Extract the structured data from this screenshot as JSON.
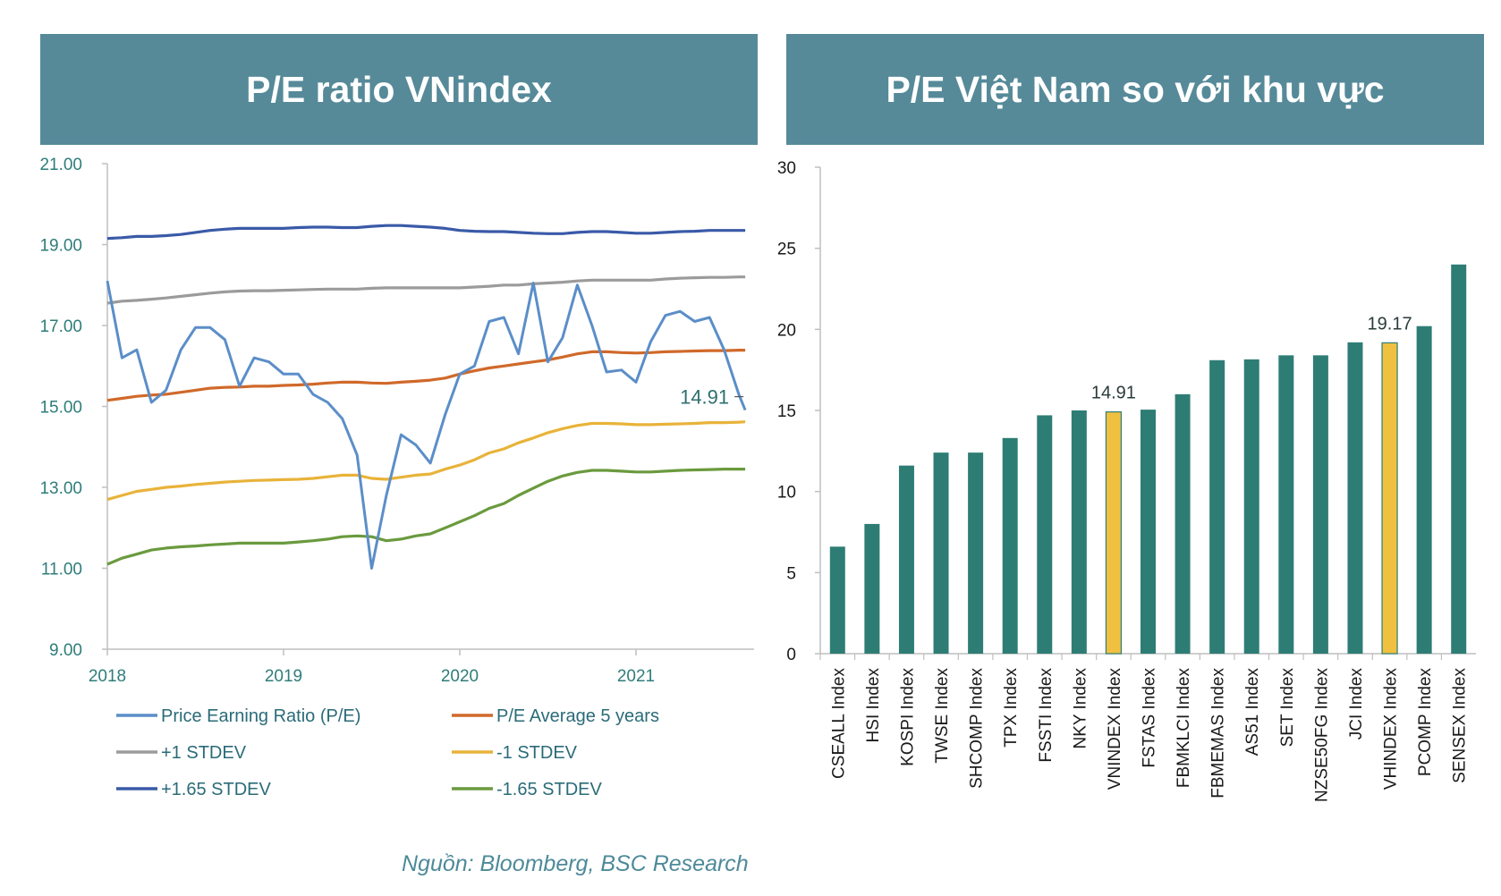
{
  "panels": {
    "left_title": "P/E ratio VNindex",
    "right_title": "P/E Việt Nam so với khu vực"
  },
  "source": "Nguồn: Bloomberg, BSC Research",
  "colors": {
    "banner": "#568a99",
    "pe": "#5b8ec9",
    "avg": "#d0692a",
    "plus1": "#9b9b9b",
    "minus1": "#e8b33a",
    "plus165": "#3a5aa8",
    "minus165": "#6a9a3e",
    "bar": "#2e7d75",
    "bar_highlight": "#f0c040"
  },
  "chart_data": [
    {
      "type": "line",
      "title": "P/E ratio VNindex",
      "x_ticks": [
        "2018",
        "2019",
        "2020",
        "2021"
      ],
      "x_tick_values": [
        2018.0,
        2019.0,
        2020.0,
        2021.0
      ],
      "xlim": [
        2018.0,
        2021.67
      ],
      "ylim": [
        9.0,
        21.0
      ],
      "y_ticks": [
        "9.00",
        "11.00",
        "13.00",
        "15.00",
        "17.00",
        "19.00",
        "21.00"
      ],
      "y_tick_values": [
        9,
        11,
        13,
        15,
        17,
        19,
        21
      ],
      "annotation": {
        "text": "14.91",
        "series": "Price Earning Ratio (P/E)"
      },
      "x": [
        2018.0,
        2018.083,
        2018.167,
        2018.25,
        2018.333,
        2018.417,
        2018.5,
        2018.583,
        2018.667,
        2018.75,
        2018.833,
        2018.917,
        2019.0,
        2019.083,
        2019.167,
        2019.25,
        2019.333,
        2019.417,
        2019.5,
        2019.583,
        2019.667,
        2019.75,
        2019.833,
        2019.917,
        2020.0,
        2020.083,
        2020.167,
        2020.25,
        2020.333,
        2020.417,
        2020.5,
        2020.583,
        2020.667,
        2020.75,
        2020.833,
        2020.917,
        2021.0,
        2021.083,
        2021.167,
        2021.25,
        2021.333,
        2021.417,
        2021.5,
        2021.583,
        2021.62
      ],
      "series": [
        {
          "name": "Price Earning Ratio (P/E)",
          "color_key": "pe",
          "values": [
            18.1,
            16.2,
            16.4,
            15.1,
            15.4,
            16.4,
            16.95,
            16.95,
            16.65,
            15.5,
            16.2,
            16.1,
            15.8,
            15.8,
            15.3,
            15.1,
            14.7,
            13.8,
            11.0,
            12.8,
            14.3,
            14.05,
            13.6,
            14.8,
            15.8,
            16.0,
            17.1,
            17.2,
            16.3,
            18.05,
            16.1,
            16.7,
            18.0,
            17.0,
            15.85,
            15.9,
            15.6,
            16.6,
            17.25,
            17.35,
            17.1,
            17.2,
            16.4,
            15.3,
            14.91
          ]
        },
        {
          "name": "P/E Average 5 years",
          "color_key": "avg",
          "values": [
            15.15,
            15.2,
            15.25,
            15.28,
            15.3,
            15.35,
            15.4,
            15.45,
            15.47,
            15.48,
            15.5,
            15.5,
            15.52,
            15.53,
            15.55,
            15.58,
            15.6,
            15.6,
            15.58,
            15.57,
            15.6,
            15.62,
            15.65,
            15.7,
            15.8,
            15.88,
            15.95,
            16.0,
            16.05,
            16.1,
            16.15,
            16.22,
            16.3,
            16.35,
            16.35,
            16.33,
            16.32,
            16.33,
            16.35,
            16.36,
            16.37,
            16.38,
            16.38,
            16.39,
            16.39
          ]
        },
        {
          "name": "+1 STDEV",
          "color_key": "plus1",
          "values": [
            17.55,
            17.6,
            17.62,
            17.65,
            17.68,
            17.72,
            17.76,
            17.8,
            17.83,
            17.85,
            17.86,
            17.86,
            17.87,
            17.88,
            17.89,
            17.9,
            17.9,
            17.9,
            17.92,
            17.93,
            17.93,
            17.93,
            17.93,
            17.93,
            17.93,
            17.95,
            17.97,
            18.0,
            18.0,
            18.03,
            18.05,
            18.07,
            18.1,
            18.12,
            18.12,
            18.12,
            18.12,
            18.12,
            18.15,
            18.17,
            18.18,
            18.19,
            18.19,
            18.2,
            18.2
          ]
        },
        {
          "name": "-1 STDEV",
          "color_key": "minus1",
          "values": [
            12.7,
            12.8,
            12.9,
            12.95,
            13.0,
            13.03,
            13.07,
            13.1,
            13.13,
            13.15,
            13.17,
            13.18,
            13.19,
            13.2,
            13.22,
            13.26,
            13.3,
            13.3,
            13.22,
            13.2,
            13.25,
            13.3,
            13.33,
            13.45,
            13.55,
            13.68,
            13.85,
            13.95,
            14.1,
            14.22,
            14.35,
            14.45,
            14.53,
            14.58,
            14.58,
            14.57,
            14.55,
            14.55,
            14.56,
            14.57,
            14.58,
            14.6,
            14.6,
            14.61,
            14.62
          ]
        },
        {
          "name": "+1.65 STDEV",
          "color_key": "plus165",
          "values": [
            19.15,
            19.17,
            19.2,
            19.2,
            19.22,
            19.25,
            19.3,
            19.35,
            19.38,
            19.4,
            19.4,
            19.4,
            19.4,
            19.42,
            19.43,
            19.43,
            19.42,
            19.42,
            19.45,
            19.47,
            19.47,
            19.45,
            19.43,
            19.4,
            19.35,
            19.33,
            19.32,
            19.32,
            19.3,
            19.28,
            19.27,
            19.27,
            19.3,
            19.32,
            19.32,
            19.3,
            19.28,
            19.28,
            19.3,
            19.32,
            19.33,
            19.35,
            19.35,
            19.35,
            19.35
          ]
        },
        {
          "name": "-1.65 STDEV",
          "color_key": "minus165",
          "values": [
            11.1,
            11.25,
            11.35,
            11.45,
            11.5,
            11.53,
            11.55,
            11.58,
            11.6,
            11.62,
            11.62,
            11.62,
            11.62,
            11.65,
            11.68,
            11.72,
            11.78,
            11.8,
            11.78,
            11.68,
            11.72,
            11.8,
            11.85,
            12.0,
            12.15,
            12.3,
            12.48,
            12.6,
            12.8,
            12.98,
            13.15,
            13.28,
            13.37,
            13.42,
            13.42,
            13.4,
            13.38,
            13.38,
            13.4,
            13.42,
            13.43,
            13.44,
            13.45,
            13.45,
            13.45
          ]
        }
      ],
      "legend": [
        "Price Earning Ratio (P/E)",
        "P/E Average 5 years",
        "+1 STDEV",
        "-1 STDEV",
        "+1.65 STDEV",
        "-1.65 STDEV"
      ]
    },
    {
      "type": "bar",
      "title": "P/E Việt Nam so với khu vực",
      "categories": [
        "CSEALL Index",
        "HSI Index",
        "KOSPI Index",
        "TWSE Index",
        "SHCOMP Index",
        "TPX Index",
        "FSSTI Index",
        "NKY Index",
        "VNINDEX Index",
        "FSTAS Index",
        "FBMKLCI Index",
        "FBMEMAS Index",
        "AS51 Index",
        "SET Index",
        "NZSE50FG Index",
        "JCI Index",
        "VHINDEX Index",
        "PCOMP Index",
        "SENSEX Index"
      ],
      "values": [
        6.6,
        8.0,
        11.6,
        12.4,
        12.4,
        13.3,
        14.7,
        15.0,
        14.91,
        15.05,
        16.0,
        18.1,
        18.15,
        18.4,
        18.4,
        19.2,
        19.17,
        20.2,
        24.0
      ],
      "highlighted": [
        "VNINDEX Index",
        "VHINDEX Index"
      ],
      "data_labels": [
        {
          "category": "VNINDEX Index",
          "text": "14.91"
        },
        {
          "category": "VHINDEX Index",
          "text": "19.17"
        }
      ],
      "ylim": [
        0,
        30
      ],
      "y_ticks": [
        "0",
        "5",
        "10",
        "15",
        "20",
        "25",
        "30"
      ],
      "y_tick_values": [
        0,
        5,
        10,
        15,
        20,
        25,
        30
      ]
    }
  ]
}
